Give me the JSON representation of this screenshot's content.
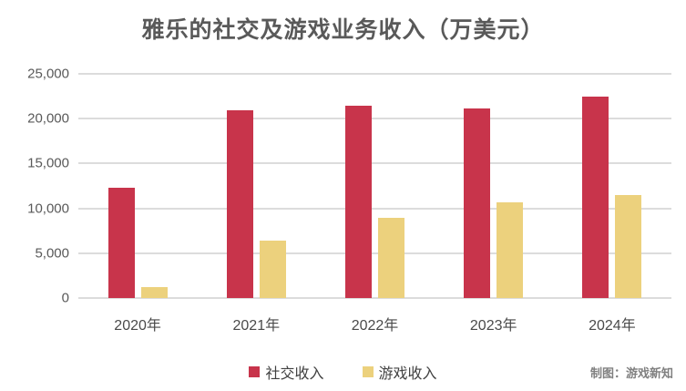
{
  "chart_data": {
    "type": "bar",
    "title": "雅乐的社交及游戏业务收入（万美元）",
    "categories": [
      "2020年",
      "2021年",
      "2022年",
      "2023年",
      "2024年"
    ],
    "series": [
      {
        "key": "social",
        "name": "社交收入",
        "color": "#c8344b",
        "values": [
          12290,
          20890,
          21420,
          21160,
          22470
        ]
      },
      {
        "key": "game",
        "name": "游戏收入",
        "color": "#ecd17d",
        "values": [
          1220,
          6420,
          8940,
          10640,
          11490
        ]
      }
    ],
    "ylim": [
      0,
      25000
    ],
    "y_ticks": [
      "25,000",
      "20,000",
      "15,000",
      "10,000",
      "5,000",
      "0"
    ],
    "grid": true,
    "gridline_color": "#dcdcdc",
    "legend_position": "bottom",
    "credit": "制图：游戏新知",
    "title_color": "#595959",
    "background_color": "#ffffff"
  }
}
